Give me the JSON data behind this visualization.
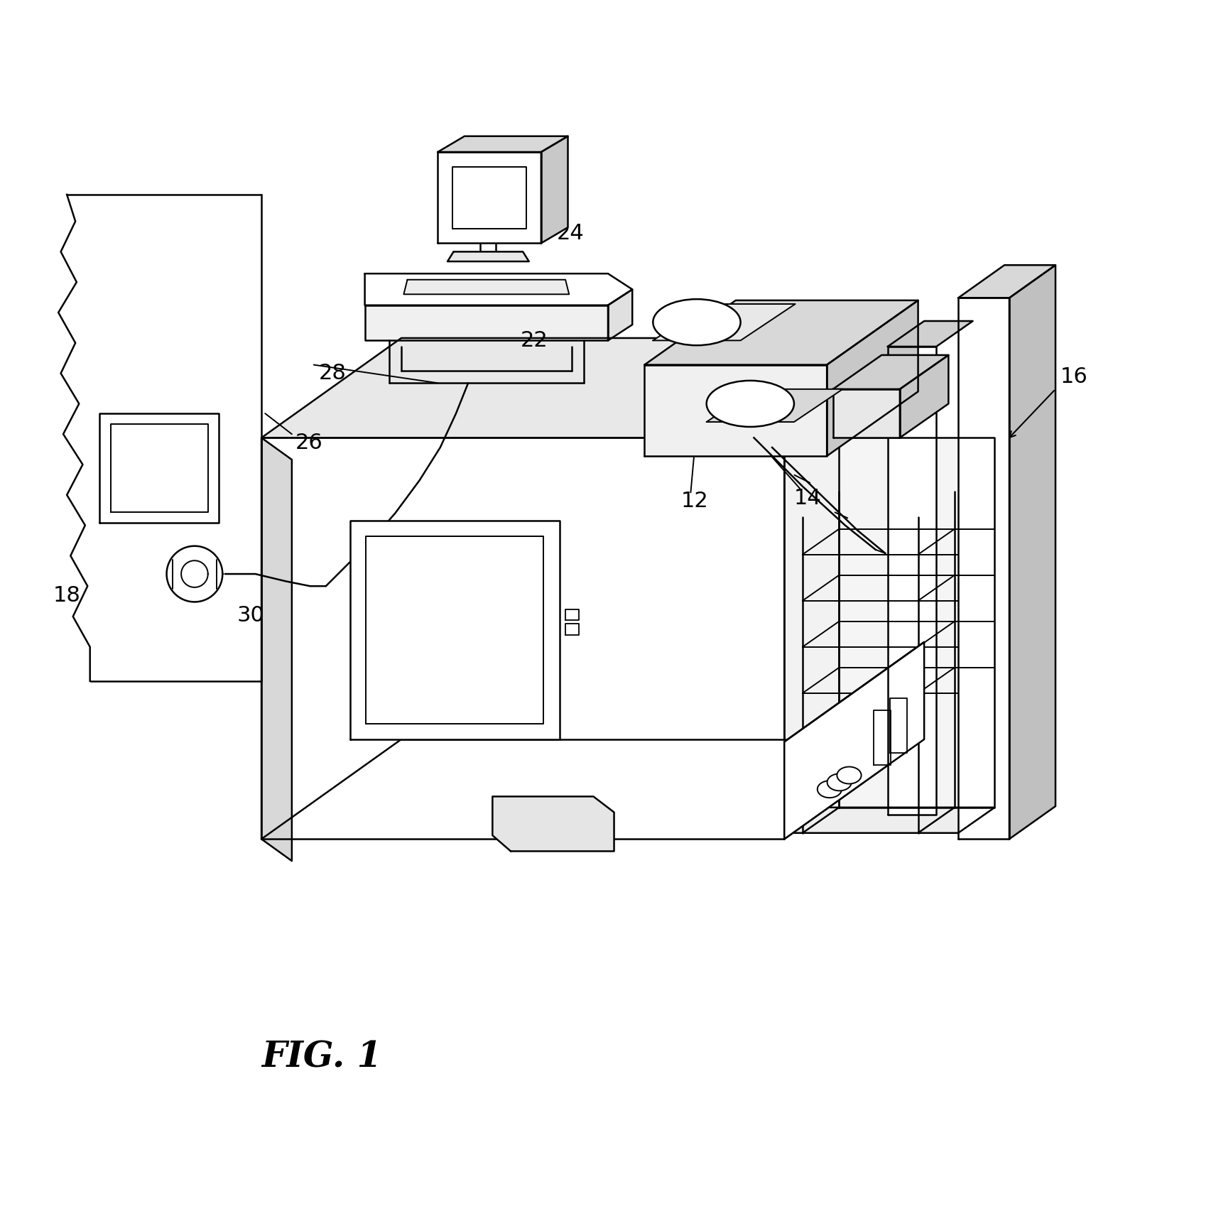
{
  "bg_color": "#ffffff",
  "line_color": "#000000",
  "lw": 1.8,
  "lw2": 1.4,
  "fig_label": "FIG. 1",
  "fs": 22
}
